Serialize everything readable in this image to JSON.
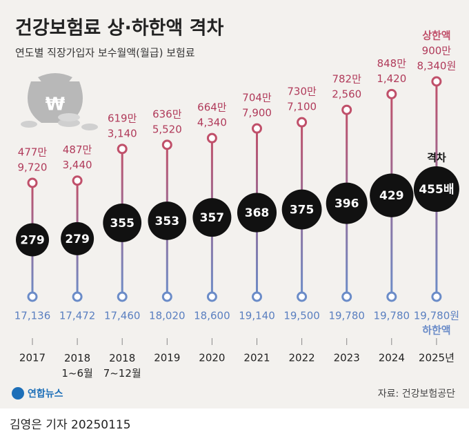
{
  "chart_data": {
    "type": "dumbbell",
    "title": "건강보험료 상·하한액 격차",
    "subtitle": "연도별 직장가입자 보수월액(월급) 보험료",
    "categories": [
      "2017",
      "2018\n1~6월",
      "2018\n7~12월",
      "2019",
      "2020",
      "2021",
      "2022",
      "2023",
      "2024",
      "2025년"
    ],
    "series": [
      {
        "name": "상한액",
        "color": "#c0506a",
        "values": [
          4779720,
          4873440,
          6193140,
          6365520,
          6644340,
          7047900,
          7307100,
          7822560,
          8481420,
          9008340
        ],
        "value_labels": [
          [
            "477만",
            "9,720"
          ],
          [
            "487만",
            "3,440"
          ],
          [
            "619만",
            "3,140"
          ],
          [
            "636만",
            "5,520"
          ],
          [
            "664만",
            "4,340"
          ],
          [
            "704만",
            "7,900"
          ],
          [
            "730만",
            "7,100"
          ],
          [
            "782만",
            "2,560"
          ],
          [
            "848만",
            "1,420"
          ],
          [
            "900만",
            "8,340원"
          ]
        ]
      },
      {
        "name": "하한액",
        "color": "#6b8cc8",
        "values": [
          17136,
          17472,
          17460,
          18020,
          18600,
          19140,
          19500,
          19780,
          19780,
          19780
        ],
        "value_labels": [
          "17,136",
          "17,472",
          "17,460",
          "18,020",
          "18,600",
          "19,140",
          "19,500",
          "19,780",
          "19,780",
          "19,780원"
        ]
      },
      {
        "name": "격차",
        "color": "#111111",
        "values": [
          279,
          279,
          355,
          353,
          357,
          368,
          375,
          396,
          429,
          455
        ],
        "value_labels": [
          "279",
          "279",
          "355",
          "353",
          "357",
          "368",
          "375",
          "396",
          "429",
          "455배"
        ]
      }
    ],
    "source": "자료: 건강보험공단",
    "logo": "연합뉴스",
    "byline": "김영은 기자 20250115"
  }
}
